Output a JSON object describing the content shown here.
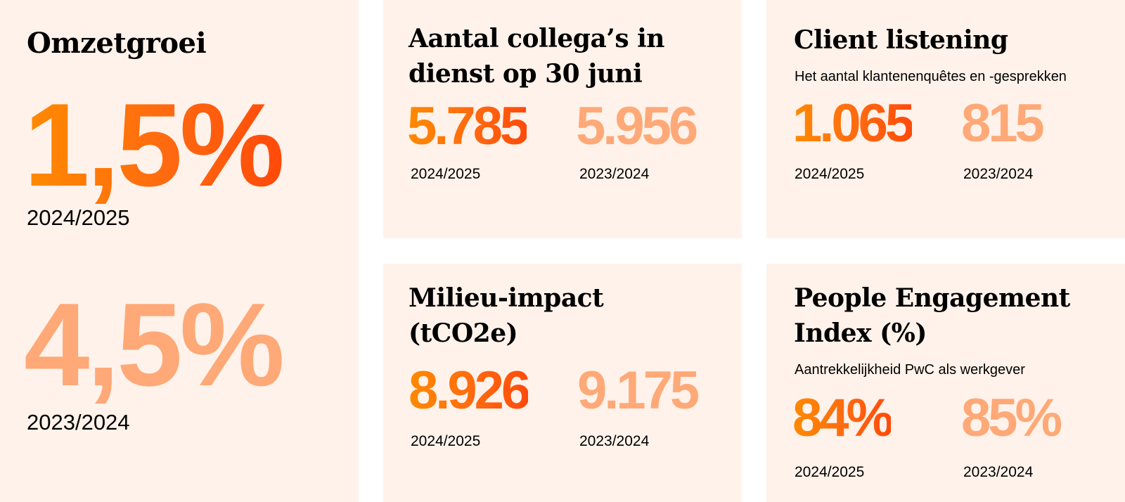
{
  "omzet": {
    "title": "Omzetgroei",
    "current_value": "1,5%",
    "current_year": "2024/2025",
    "previous_value": "4,5%",
    "previous_year": "2023/2024"
  },
  "collegas": {
    "title_line1": "Aantal collega’s in",
    "title_line2": "dienst op 30 juni",
    "current_value": "5.785",
    "current_year": "2024/2025",
    "previous_value": "5.956",
    "previous_year": "2023/2024"
  },
  "client": {
    "title": "Client listening",
    "subtitle": "Het aantal klantenenquêtes en -gesprekken",
    "current_value": "1.065",
    "current_year": "2024/2025",
    "previous_value": "815",
    "previous_year": "2023/2024"
  },
  "milieu": {
    "title_line1": "Milieu-impact",
    "title_line2": "(tCO2e)",
    "current_value": "8.926",
    "current_year": "2024/2025",
    "previous_value": "9.175",
    "previous_year": "2023/2024"
  },
  "people": {
    "title_line1": "People Engagement",
    "title_line2": "Index (%)",
    "subtitle": "Aantrekkelijkheid PwC als werkgever",
    "current_value": "84%",
    "current_year": "2024/2025",
    "previous_value": "85%",
    "previous_year": "2023/2024"
  },
  "colors": {
    "card_background": "#fff2ea",
    "accent_gradient_start": "#ff8a00",
    "accent_gradient_end": "#ff4a0a",
    "previous_value": "#fea977"
  }
}
